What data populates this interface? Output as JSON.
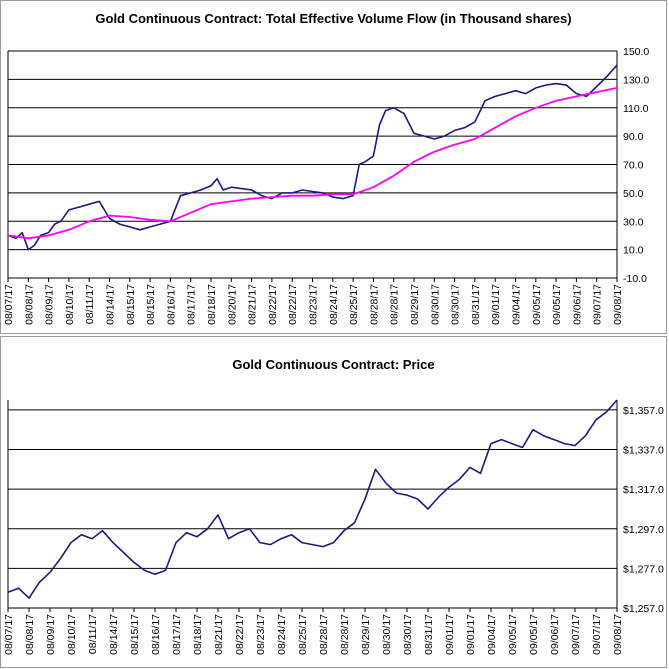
{
  "chart_data": [
    {
      "type": "line",
      "title": "Gold Continuous Contract: Total Effective Volume Flow (in Thousand shares)",
      "ylim": [
        -10,
        150
      ],
      "yticks": [
        -10,
        10,
        30,
        50,
        70,
        90,
        110,
        130,
        150
      ],
      "ytick_labels": [
        "-10.0",
        "10.0",
        "30.0",
        "50.0",
        "70.0",
        "90.0",
        "110.0",
        "130.0",
        "150.0"
      ],
      "grid": true,
      "categories": [
        "08/07/17",
        "08/08/17",
        "08/09/17",
        "08/10/17",
        "08/11/17",
        "08/14/17",
        "08/15/17",
        "08/15/17",
        "08/16/17",
        "08/17/17",
        "08/18/17",
        "08/20/17",
        "08/21/17",
        "08/22/17",
        "08/22/17",
        "08/23/17",
        "08/24/17",
        "08/25/17",
        "08/28/17",
        "08/28/17",
        "08/29/17",
        "08/30/17",
        "08/30/17",
        "08/31/17",
        "09/01/17",
        "09/04/17",
        "09/05/17",
        "09/05/17",
        "09/06/17",
        "09/07/17",
        "09/08/17"
      ],
      "series": [
        {
          "color": "#1a1a80",
          "values": [
            [
              0,
              20
            ],
            [
              0.4,
              18
            ],
            [
              0.7,
              22
            ],
            [
              1,
              10
            ],
            [
              1.3,
              13
            ],
            [
              1.6,
              20
            ],
            [
              2,
              22
            ],
            [
              2.3,
              28
            ],
            [
              2.6,
              30
            ],
            [
              3,
              38
            ],
            [
              3.5,
              40
            ],
            [
              4,
              42
            ],
            [
              4.5,
              44
            ],
            [
              5,
              32
            ],
            [
              5.5,
              28
            ],
            [
              6,
              26
            ],
            [
              6.5,
              24
            ],
            [
              7,
              26
            ],
            [
              7.5,
              28
            ],
            [
              8,
              30
            ],
            [
              8.5,
              48
            ],
            [
              9,
              50
            ],
            [
              9.5,
              52
            ],
            [
              10,
              55
            ],
            [
              10.3,
              60
            ],
            [
              10.6,
              52
            ],
            [
              11,
              54
            ],
            [
              11.5,
              53
            ],
            [
              12,
              52
            ],
            [
              12.5,
              48
            ],
            [
              13,
              46
            ],
            [
              13.5,
              50
            ],
            [
              14,
              50
            ],
            [
              14.5,
              52
            ],
            [
              15,
              51
            ],
            [
              15.5,
              50
            ],
            [
              16,
              47
            ],
            [
              16.5,
              46
            ],
            [
              17,
              48
            ],
            [
              17.3,
              70
            ],
            [
              17.6,
              72
            ],
            [
              18,
              76
            ],
            [
              18.3,
              98
            ],
            [
              18.6,
              108
            ],
            [
              19,
              110
            ],
            [
              19.5,
              106
            ],
            [
              20,
              92
            ],
            [
              20.5,
              90
            ],
            [
              21,
              88
            ],
            [
              21.5,
              90
            ],
            [
              22,
              94
            ],
            [
              22.5,
              96
            ],
            [
              23,
              100
            ],
            [
              23.5,
              115
            ],
            [
              24,
              118
            ],
            [
              24.5,
              120
            ],
            [
              25,
              122
            ],
            [
              25.5,
              120
            ],
            [
              26,
              124
            ],
            [
              26.5,
              126
            ],
            [
              27,
              127
            ],
            [
              27.5,
              126
            ],
            [
              28,
              120
            ],
            [
              28.5,
              118
            ],
            [
              29,
              125
            ],
            [
              29.5,
              132
            ],
            [
              30,
              140
            ]
          ]
        },
        {
          "color": "#ff00ff",
          "values": [
            [
              0,
              20
            ],
            [
              1,
              18
            ],
            [
              2,
              20
            ],
            [
              3,
              24
            ],
            [
              4,
              30
            ],
            [
              5,
              34
            ],
            [
              6,
              33
            ],
            [
              7,
              31
            ],
            [
              8,
              30
            ],
            [
              9,
              36
            ],
            [
              10,
              42
            ],
            [
              11,
              44
            ],
            [
              12,
              46
            ],
            [
              13,
              47
            ],
            [
              14,
              48
            ],
            [
              15,
              48
            ],
            [
              16,
              49
            ],
            [
              17,
              49
            ],
            [
              18,
              54
            ],
            [
              19,
              62
            ],
            [
              20,
              72
            ],
            [
              21,
              79
            ],
            [
              22,
              84
            ],
            [
              23,
              88
            ],
            [
              24,
              96
            ],
            [
              25,
              104
            ],
            [
              26,
              110
            ],
            [
              27,
              115
            ],
            [
              28,
              118
            ],
            [
              29,
              121
            ],
            [
              30,
              124
            ]
          ]
        }
      ]
    },
    {
      "type": "line",
      "title": "Gold Continuous Contract: Price",
      "ylim": [
        1257,
        1362
      ],
      "yticks": [
        1257,
        1277,
        1297,
        1317,
        1337,
        1357
      ],
      "ytick_labels": [
        "$1,257.0",
        "$1,277.0",
        "$1,297.0",
        "$1,317.0",
        "$1,337.0",
        "$1,357.0"
      ],
      "grid": true,
      "categories": [
        "08/07/17",
        "08/08/17",
        "08/09/17",
        "08/10/17",
        "08/11/17",
        "08/14/17",
        "08/15/17",
        "08/16/17",
        "08/17/17",
        "08/18/17",
        "08/21/17",
        "08/22/17",
        "08/23/17",
        "08/24/17",
        "08/25/17",
        "08/28/17",
        "08/28/17",
        "08/29/17",
        "08/30/17",
        "08/30/17",
        "08/31/17",
        "09/01/17",
        "09/01/17",
        "09/04/17",
        "09/05/17",
        "09/05/17",
        "09/06/17",
        "09/07/17",
        "09/07/17",
        "09/08/17"
      ],
      "series": [
        {
          "color": "#1a1a80",
          "values": [
            [
              0,
              1265
            ],
            [
              0.5,
              1267
            ],
            [
              1,
              1262
            ],
            [
              1.5,
              1270
            ],
            [
              2,
              1275
            ],
            [
              2.5,
              1282
            ],
            [
              3,
              1290
            ],
            [
              3.5,
              1294
            ],
            [
              4,
              1292
            ],
            [
              4.5,
              1296
            ],
            [
              5,
              1290
            ],
            [
              5.5,
              1285
            ],
            [
              6,
              1280
            ],
            [
              6.5,
              1276
            ],
            [
              7,
              1274
            ],
            [
              7.5,
              1276
            ],
            [
              8,
              1290
            ],
            [
              8.5,
              1295
            ],
            [
              9,
              1293
            ],
            [
              9.5,
              1297
            ],
            [
              10,
              1304
            ],
            [
              10.5,
              1292
            ],
            [
              11,
              1295
            ],
            [
              11.5,
              1297
            ],
            [
              12,
              1290
            ],
            [
              12.5,
              1289
            ],
            [
              13,
              1292
            ],
            [
              13.5,
              1294
            ],
            [
              14,
              1290
            ],
            [
              14.5,
              1289
            ],
            [
              15,
              1288
            ],
            [
              15.5,
              1290
            ],
            [
              16,
              1296
            ],
            [
              16.5,
              1300
            ],
            [
              17,
              1312
            ],
            [
              17.5,
              1327
            ],
            [
              18,
              1320
            ],
            [
              18.5,
              1315
            ],
            [
              19,
              1314
            ],
            [
              19.5,
              1312
            ],
            [
              20,
              1307
            ],
            [
              20.5,
              1313
            ],
            [
              21,
              1318
            ],
            [
              21.5,
              1322
            ],
            [
              22,
              1328
            ],
            [
              22.5,
              1325
            ],
            [
              23,
              1340
            ],
            [
              23.5,
              1342
            ],
            [
              24,
              1340
            ],
            [
              24.5,
              1338
            ],
            [
              25,
              1347
            ],
            [
              25.5,
              1344
            ],
            [
              26,
              1342
            ],
            [
              26.5,
              1340
            ],
            [
              27,
              1339
            ],
            [
              27.5,
              1344
            ],
            [
              28,
              1352
            ],
            [
              28.5,
              1356
            ],
            [
              29,
              1362
            ]
          ]
        }
      ]
    }
  ]
}
